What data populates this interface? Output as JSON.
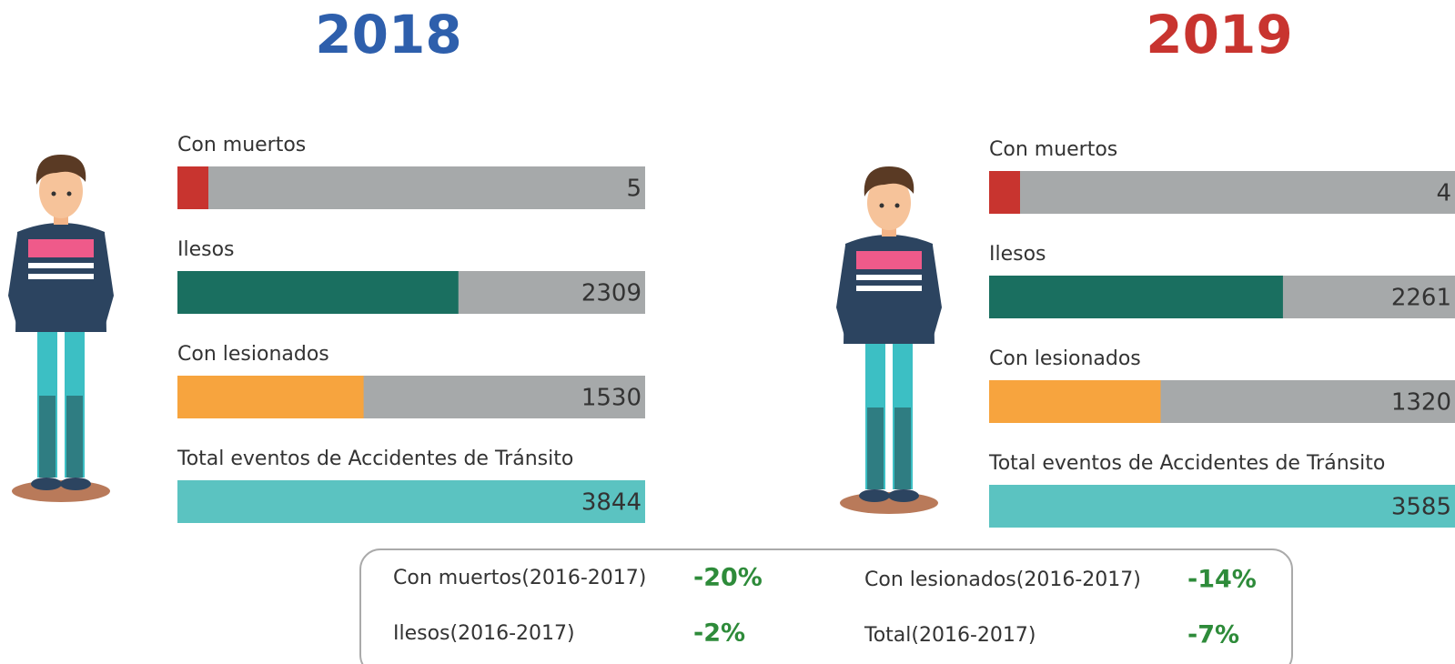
{
  "chart_data": [
    {
      "type": "bar",
      "title": "2018",
      "title_color": "#2e5fac",
      "categories": [
        "Con muertos",
        "Ilesos",
        "Con lesionados",
        "Total eventos de Accidentes de Tránsito"
      ],
      "values": [
        5,
        2309,
        1530,
        3844
      ],
      "colors": [
        "#c8342f",
        "#1a6f60",
        "#f7a43e",
        "#5bc3c1"
      ],
      "track_color": "#a6a9aa"
    },
    {
      "type": "bar",
      "title": "2019",
      "title_color": "#c8342f",
      "categories": [
        "Con muertos",
        "Ilesos",
        "Con lesionados",
        "Total eventos de Accidentes de Tránsito"
      ],
      "values": [
        4,
        2261,
        1320,
        3585
      ],
      "colors": [
        "#c8342f",
        "#1a6f60",
        "#f7a43e",
        "#5bc3c1"
      ],
      "track_color": "#a6a9aa"
    }
  ],
  "summary": [
    {
      "label": "Con muertos(2016-2017)",
      "value": "-20%"
    },
    {
      "label": "Ilesos(2016-2017)",
      "value": "-2%"
    },
    {
      "label": "Con lesionados(2016-2017)",
      "value": "-14%"
    },
    {
      "label": "Total(2016-2017)",
      "value": "-7%"
    }
  ]
}
